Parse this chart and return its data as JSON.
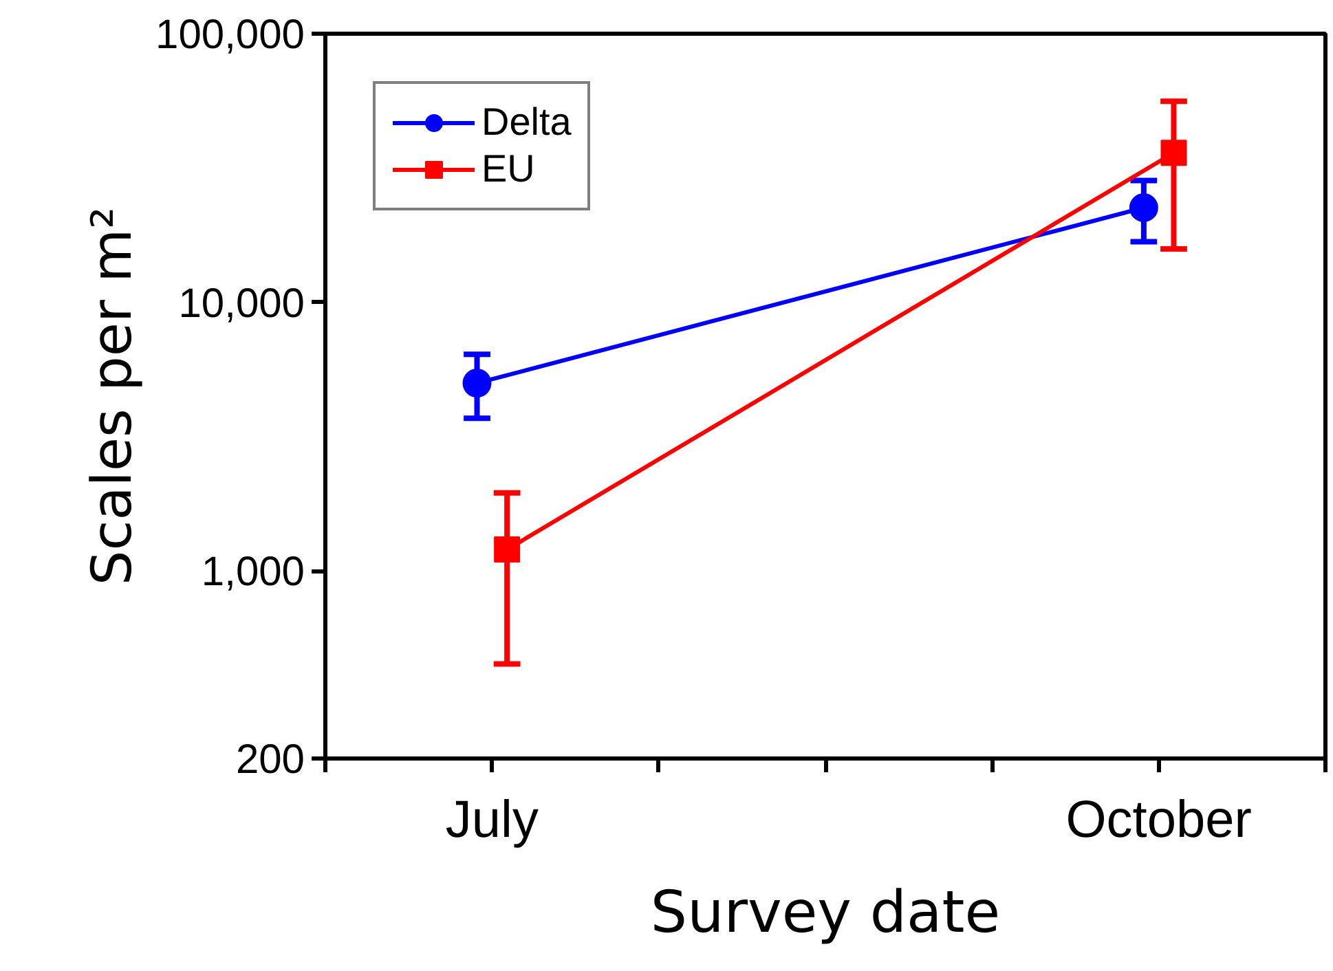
{
  "chart_data": {
    "type": "line",
    "xlabel": "Survey date",
    "ylabel": "Scales per m²",
    "log": "y",
    "categories": [
      "July",
      "October"
    ],
    "ylim": [
      200,
      100000
    ],
    "yticks": [
      {
        "value": 200,
        "label": "200"
      },
      {
        "value": 1000,
        "label": "1,000"
      },
      {
        "value": 10000,
        "label": "10,000"
      },
      {
        "value": 100000,
        "label": "100,000"
      }
    ],
    "grid": false,
    "legend": "top left",
    "line_style": "solid",
    "series": [
      {
        "name": "Delta",
        "color": "#0000ff",
        "marker": "circle",
        "values": [
          5000,
          22500
        ],
        "errors": [
          [
            3700,
            6400
          ],
          [
            16800,
            28400
          ]
        ]
      },
      {
        "name": "EU",
        "color": "#ff0000",
        "marker": "square",
        "values": [
          1200,
          36000
        ],
        "errors": [
          [
            450,
            1950
          ],
          [
            15800,
            56000
          ]
        ]
      }
    ]
  }
}
